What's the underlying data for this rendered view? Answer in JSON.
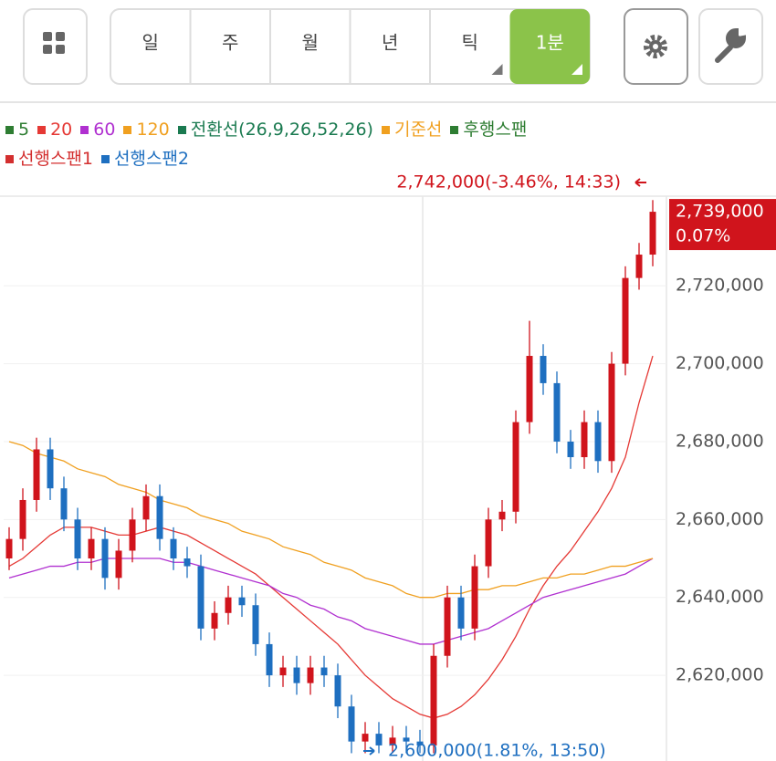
{
  "toolbar": {
    "periods": [
      "일",
      "주",
      "월",
      "년",
      "틱",
      "1분"
    ],
    "active": 5
  },
  "chart_data": {
    "type": "candlestick",
    "series": [
      {
        "name": "5",
        "color": "#2e7d32"
      },
      {
        "name": "20",
        "color": "#e53935",
        "values": [
          2648000,
          2650000,
          2653000,
          2656000,
          2658000,
          2658000,
          2658000,
          2657000,
          2656000,
          2656000,
          2657000,
          2658000,
          2657000,
          2656000,
          2654000,
          2652000,
          2650000,
          2648000,
          2646000,
          2643000,
          2640000,
          2637000,
          2634000,
          2631000,
          2628000,
          2624000,
          2620000,
          2617000,
          2614000,
          2612000,
          2610000,
          2609000,
          2610000,
          2612000,
          2615000,
          2619000,
          2624000,
          2630000,
          2637000,
          2643000,
          2648000,
          2652000,
          2657000,
          2662000,
          2668000,
          2676000,
          2690000,
          2702000
        ]
      },
      {
        "name": "60",
        "color": "#b030d0",
        "values": [
          2645000,
          2646000,
          2647000,
          2648000,
          2648000,
          2649000,
          2649000,
          2650000,
          2650000,
          2650000,
          2650000,
          2650000,
          2649000,
          2649000,
          2648000,
          2647000,
          2646000,
          2645000,
          2644000,
          2643000,
          2641000,
          2640000,
          2638000,
          2637000,
          2635000,
          2634000,
          2632000,
          2631000,
          2630000,
          2629000,
          2628000,
          2628000,
          2629000,
          2630000,
          2631000,
          2632000,
          2634000,
          2636000,
          2638000,
          2640000,
          2641000,
          2642000,
          2643000,
          2644000,
          2645000,
          2646000,
          2648000,
          2650000
        ]
      },
      {
        "name": "120",
        "color": "#f0a020",
        "values": [
          2680000,
          2679000,
          2677000,
          2676000,
          2675000,
          2673000,
          2672000,
          2671000,
          2669000,
          2668000,
          2667000,
          2665000,
          2664000,
          2663000,
          2661000,
          2660000,
          2659000,
          2657000,
          2656000,
          2655000,
          2653000,
          2652000,
          2651000,
          2649000,
          2648000,
          2647000,
          2645000,
          2644000,
          2643000,
          2641000,
          2640000,
          2640000,
          2641000,
          2641000,
          2642000,
          2642000,
          2643000,
          2643000,
          2644000,
          2645000,
          2645000,
          2646000,
          2646000,
          2647000,
          2648000,
          2648000,
          2649000,
          2650000
        ]
      },
      {
        "name": "전환선(26,9,26,52,26)",
        "color": "#1a7a50"
      },
      {
        "name": "기준선",
        "color": "#f0a020"
      },
      {
        "name": "후행스팬",
        "color": "#2e7d32"
      },
      {
        "name": "선행스팬1",
        "color": "#d32f2f"
      },
      {
        "name": "선행스팬2",
        "color": "#1e6fc0"
      }
    ],
    "open": [
      2650000,
      2655000,
      2665000,
      2678000,
      2668000,
      2660000,
      2650000,
      2655000,
      2645000,
      2652000,
      2660000,
      2666000,
      2655000,
      2650000,
      2648000,
      2632000,
      2636000,
      2640000,
      2638000,
      2628000,
      2620000,
      2622000,
      2618000,
      2622000,
      2620000,
      2612000,
      2603000,
      2605000,
      2602000,
      2604000,
      2603000,
      2602000,
      2625000,
      2640000,
      2632000,
      2648000,
      2660000,
      2662000,
      2685000,
      2702000,
      2695000,
      2680000,
      2676000,
      2685000,
      2675000,
      2700000,
      2722000,
      2728000
    ],
    "high": [
      2658000,
      2668000,
      2681000,
      2681000,
      2671000,
      2663000,
      2658000,
      2658000,
      2655000,
      2663000,
      2669000,
      2669000,
      2658000,
      2653000,
      2651000,
      2639000,
      2643000,
      2643000,
      2641000,
      2631000,
      2625000,
      2625000,
      2625000,
      2625000,
      2623000,
      2615000,
      2608000,
      2608000,
      2607000,
      2607000,
      2606000,
      2628000,
      2643000,
      2643000,
      2651000,
      2663000,
      2665000,
      2688000,
      2711000,
      2705000,
      2698000,
      2683000,
      2688000,
      2688000,
      2703000,
      2725000,
      2731000,
      2742000
    ],
    "low": [
      2647000,
      2652000,
      2662000,
      2665000,
      2657000,
      2647000,
      2647000,
      2642000,
      2642000,
      2649000,
      2657000,
      2652000,
      2647000,
      2645000,
      2629000,
      2629000,
      2633000,
      2635000,
      2625000,
      2617000,
      2617000,
      2615000,
      2615000,
      2617000,
      2609000,
      2600000,
      2600000,
      2600000,
      2600000,
      2600000,
      2600000,
      2600000,
      2622000,
      2629000,
      2629000,
      2645000,
      2657000,
      2659000,
      2682000,
      2692000,
      2677000,
      2673000,
      2673000,
      2672000,
      2672000,
      2697000,
      2719000,
      2725000
    ],
    "close": [
      2655000,
      2665000,
      2678000,
      2668000,
      2660000,
      2650000,
      2655000,
      2645000,
      2652000,
      2660000,
      2666000,
      2655000,
      2650000,
      2648000,
      2632000,
      2636000,
      2640000,
      2638000,
      2628000,
      2620000,
      2622000,
      2618000,
      2622000,
      2620000,
      2612000,
      2603000,
      2605000,
      2602000,
      2604000,
      2603000,
      2602000,
      2625000,
      2640000,
      2632000,
      2648000,
      2660000,
      2662000,
      2685000,
      2702000,
      2695000,
      2680000,
      2676000,
      2685000,
      2675000,
      2700000,
      2722000,
      2728000,
      2739000
    ],
    "up_color": "#d0141c",
    "down_color": "#1e6fc0",
    "ylim": [
      2598000,
      2743000
    ],
    "yticks": [
      {
        "value": 2620000,
        "label": "2,620,000"
      },
      {
        "value": 2640000,
        "label": "2,640,000"
      },
      {
        "value": 2660000,
        "label": "2,660,000"
      },
      {
        "value": 2680000,
        "label": "2,680,000"
      },
      {
        "value": 2700000,
        "label": "2,700,000"
      },
      {
        "value": 2720000,
        "label": "2,720,000"
      }
    ],
    "grid": true,
    "high_annotation": "2,742,000(-3.46%, 14:33)",
    "low_annotation": "2,600,000(1.81%, 13:50)",
    "last_price": {
      "value": 2739000,
      "label": "2,739,000"
    },
    "last_change": "0.07%"
  }
}
